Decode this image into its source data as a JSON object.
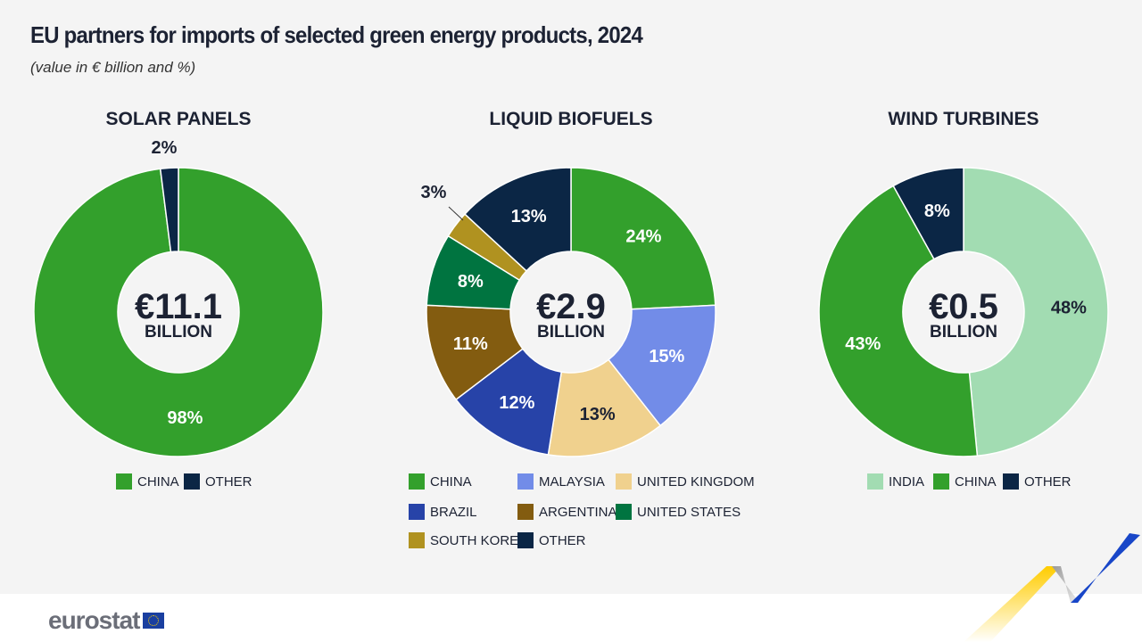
{
  "title": "EU partners for imports of selected green energy products, 2024",
  "subtitle": "(value in € billion and %)",
  "logo": "eurostat",
  "chart_data": [
    {
      "type": "pie",
      "title": "SOLAR PANELS",
      "center_value": "€11.1",
      "center_unit": "BILLION",
      "categories": [
        "CHINA",
        "OTHER"
      ],
      "values": [
        98,
        2
      ],
      "colors": [
        "#33a02c",
        "#0b2645"
      ]
    },
    {
      "type": "pie",
      "title": "LIQUID BIOFUELS",
      "center_value": "€2.9",
      "center_unit": "BILLION",
      "categories": [
        "CHINA",
        "MALAYSIA",
        "UNITED KINGDOM",
        "BRAZIL",
        "ARGENTINA",
        "UNITED STATES",
        "SOUTH KOREA",
        "OTHER"
      ],
      "values": [
        24,
        15,
        13,
        12,
        11,
        8,
        3,
        13
      ],
      "colors": [
        "#33a02c",
        "#728ce8",
        "#f0d18e",
        "#2743a8",
        "#835c10",
        "#007440",
        "#b09220",
        "#0b2645"
      ]
    },
    {
      "type": "pie",
      "title": "WIND TURBINES",
      "center_value": "€0.5",
      "center_unit": "BILLION",
      "categories": [
        "INDIA",
        "CHINA",
        "OTHER"
      ],
      "values": [
        48,
        43,
        8
      ],
      "colors": [
        "#a2dcb2",
        "#33a02c",
        "#0b2645"
      ]
    }
  ]
}
